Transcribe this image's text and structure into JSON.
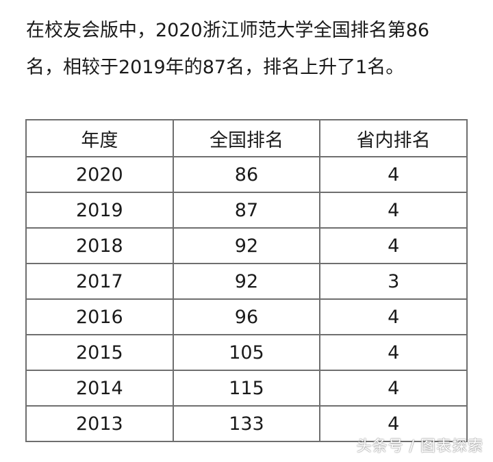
{
  "intro": {
    "line1": "在校友会版中，2020浙江师范大学全国排名第86",
    "line2": "名，相较于2019年的87名，排名上升了1名。"
  },
  "table": {
    "headers": [
      "年度",
      "全国排名",
      "省内排名"
    ],
    "rows": [
      [
        "2020",
        "86",
        "4"
      ],
      [
        "2019",
        "87",
        "4"
      ],
      [
        "2018",
        "92",
        "4"
      ],
      [
        "2017",
        "92",
        "3"
      ],
      [
        "2016",
        "96",
        "4"
      ],
      [
        "2015",
        "105",
        "4"
      ],
      [
        "2014",
        "115",
        "4"
      ],
      [
        "2013",
        "133",
        "4"
      ]
    ]
  },
  "watermark": "头条号 / 图表探索"
}
